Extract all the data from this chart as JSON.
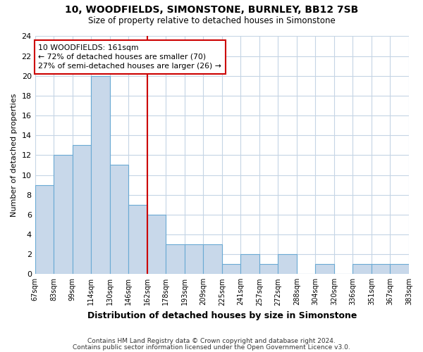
{
  "title": "10, WOODFIELDS, SIMONSTONE, BURNLEY, BB12 7SB",
  "subtitle": "Size of property relative to detached houses in Simonstone",
  "xlabel": "Distribution of detached houses by size in Simonstone",
  "ylabel": "Number of detached properties",
  "bin_labels": [
    "67sqm",
    "83sqm",
    "99sqm",
    "114sqm",
    "130sqm",
    "146sqm",
    "162sqm",
    "178sqm",
    "193sqm",
    "209sqm",
    "225sqm",
    "241sqm",
    "257sqm",
    "272sqm",
    "288sqm",
    "304sqm",
    "320sqm",
    "336sqm",
    "351sqm",
    "367sqm",
    "383sqm"
  ],
  "bar_values": [
    9,
    12,
    13,
    20,
    11,
    7,
    6,
    3,
    3,
    3,
    1,
    2,
    1,
    2,
    0,
    1,
    0,
    1,
    1,
    1
  ],
  "bar_color": "#c8d8ea",
  "bar_edge_color": "#6aaad4",
  "vline_color": "#cc0000",
  "annotation_text": "10 WOODFIELDS: 161sqm\n← 72% of detached houses are smaller (70)\n27% of semi-detached houses are larger (26) →",
  "annotation_box_edge": "#cc0000",
  "annotation_box_face": "#ffffff",
  "ylim": [
    0,
    24
  ],
  "yticks": [
    0,
    2,
    4,
    6,
    8,
    10,
    12,
    14,
    16,
    18,
    20,
    22,
    24
  ],
  "footer1": "Contains HM Land Registry data © Crown copyright and database right 2024.",
  "footer2": "Contains public sector information licensed under the Open Government Licence v3.0.",
  "bg_color": "#ffffff",
  "grid_color": "#c5d5e5"
}
